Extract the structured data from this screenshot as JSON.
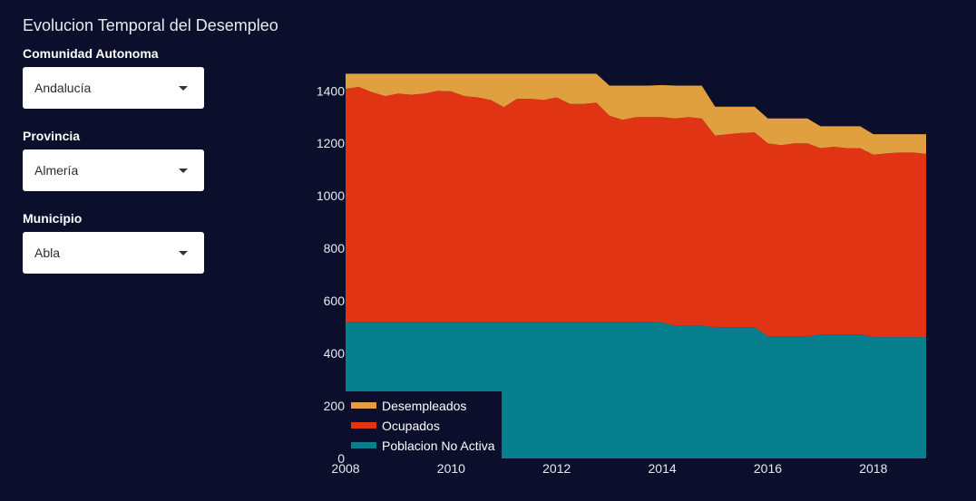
{
  "page": {
    "title": "Evolucion Temporal del Desempleo"
  },
  "filters": [
    {
      "label": "Comunidad Autonoma",
      "value": "Andalucía"
    },
    {
      "label": "Provincia",
      "value": "Almería"
    },
    {
      "label": "Municipio",
      "value": "Abla"
    }
  ],
  "colors": {
    "background": "#0b0f2b",
    "desempleados": "#e0a040",
    "ocupados": "#e03414",
    "poblacion_no_activa": "#087f8c"
  },
  "chart_data": {
    "type": "area",
    "stacked": true,
    "xlim": [
      2008,
      2019
    ],
    "ylim": [
      0,
      1470
    ],
    "xticks": [
      2008,
      2010,
      2012,
      2014,
      2016,
      2018
    ],
    "yticks": [
      0,
      200,
      400,
      600,
      800,
      1000,
      1200,
      1400
    ],
    "legend_position": "bottom-left",
    "grid": false,
    "x": [
      2008,
      2008.25,
      2008.5,
      2008.75,
      2009,
      2009.25,
      2009.5,
      2009.75,
      2010,
      2010.25,
      2010.5,
      2010.75,
      2011,
      2011.25,
      2011.5,
      2011.75,
      2012,
      2012.25,
      2012.5,
      2012.75,
      2013,
      2013.25,
      2013.5,
      2013.75,
      2014,
      2014.25,
      2014.5,
      2014.75,
      2015,
      2015.25,
      2015.5,
      2015.75,
      2016,
      2016.25,
      2016.5,
      2016.75,
      2017,
      2017.25,
      2017.5,
      2017.75,
      2018,
      2018.25,
      2018.5,
      2018.75,
      2019
    ],
    "series": [
      {
        "name": "Poblacion No Activa",
        "color": "#087f8c",
        "values": [
          520,
          520,
          520,
          520,
          520,
          520,
          520,
          520,
          520,
          520,
          520,
          520,
          520,
          520,
          520,
          520,
          520,
          520,
          520,
          520,
          520,
          520,
          520,
          520,
          518,
          505,
          505,
          505,
          500,
          500,
          500,
          500,
          465,
          465,
          465,
          465,
          472,
          472,
          472,
          472,
          462,
          462,
          462,
          462,
          462
        ]
      },
      {
        "name": "Ocupados",
        "color": "#e03414",
        "values": [
          888,
          895,
          875,
          860,
          870,
          865,
          870,
          880,
          878,
          860,
          855,
          845,
          818,
          850,
          850,
          845,
          855,
          830,
          830,
          835,
          785,
          770,
          780,
          780,
          782,
          790,
          795,
          790,
          730,
          735,
          740,
          742,
          735,
          728,
          735,
          735,
          710,
          715,
          710,
          710,
          695,
          700,
          703,
          703,
          698
        ]
      },
      {
        "name": "Desempleados",
        "color": "#e0a040",
        "values": [
          57,
          50,
          70,
          85,
          75,
          80,
          75,
          65,
          67,
          85,
          90,
          100,
          127,
          95,
          95,
          100,
          90,
          115,
          115,
          110,
          115,
          130,
          120,
          120,
          122,
          125,
          120,
          125,
          110,
          105,
          100,
          98,
          95,
          102,
          95,
          95,
          83,
          78,
          83,
          83,
          78,
          73,
          70,
          70,
          75
        ]
      }
    ]
  }
}
